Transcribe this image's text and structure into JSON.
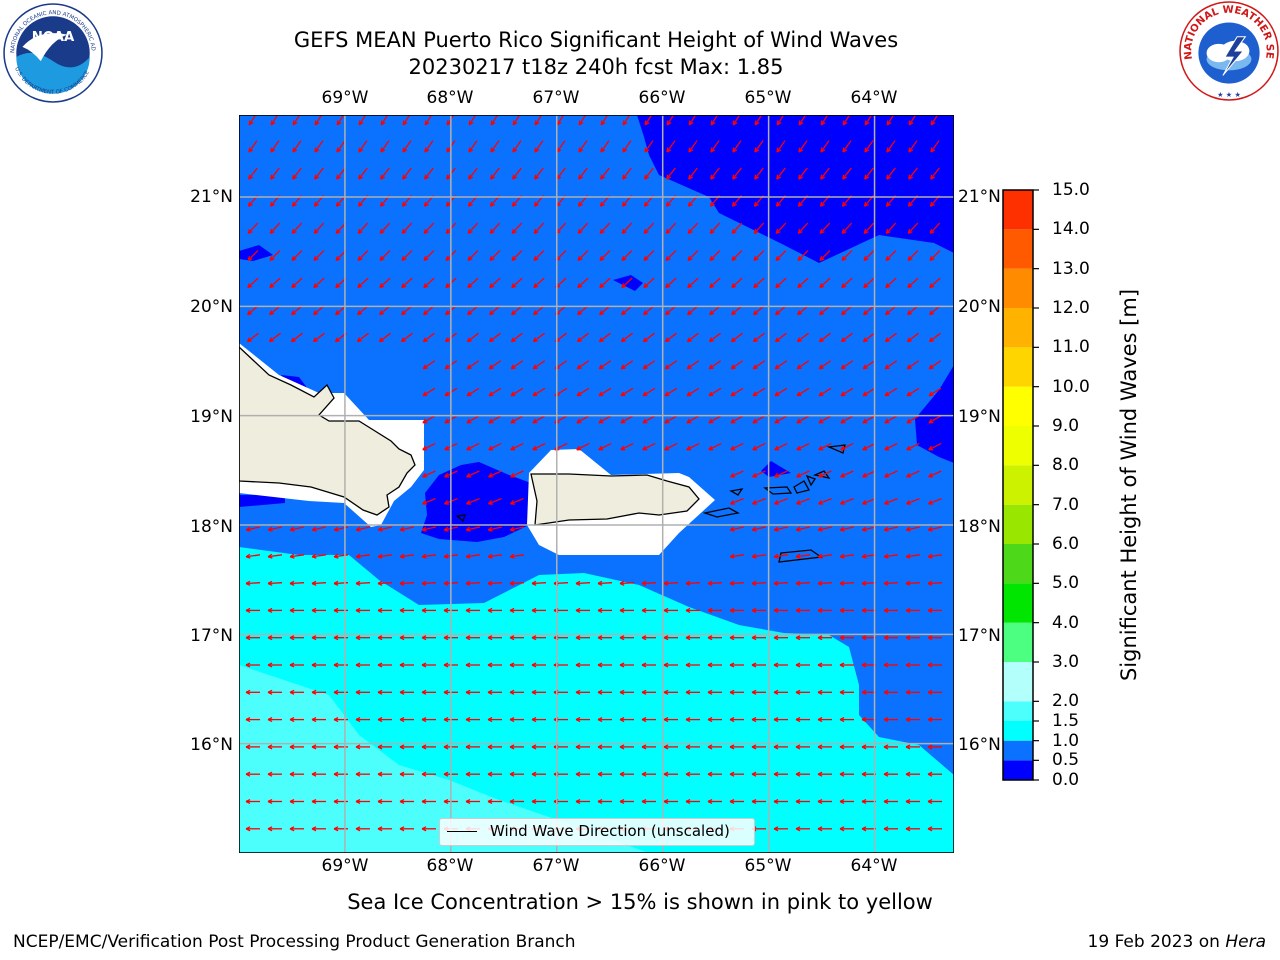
{
  "title": {
    "line1": "GEFS MEAN Puerto Rico Significant Height of Wind Waves",
    "line2": "20230217 t18z 240h fcst   Max: 1.85"
  },
  "logos": {
    "left": {
      "name": "NOAA",
      "ring_text": "NATIONAL OCEANIC AND ATMOSPHERIC ADMINISTRATION",
      "bottom_text": "U.S. DEPARTMENT OF COMMERCE",
      "icon": "noaa-logo"
    },
    "right": {
      "ring_text": "NATIONAL WEATHER SERVICE",
      "icon": "nws-logo"
    }
  },
  "map": {
    "lon_ticks": [
      "69°W",
      "68°W",
      "67°W",
      "66°W",
      "65°W",
      "64°W"
    ],
    "lat_ticks": [
      "21°N",
      "20°N",
      "19°N",
      "18°N",
      "17°N",
      "16°N"
    ],
    "lon_range": [
      -70.0,
      -63.25
    ],
    "lat_range": [
      15.0,
      21.75
    ],
    "grid": true,
    "arrow_color": "#ff0000",
    "land_color": "#efedde",
    "coast_color": "#000000",
    "wind_wave_direction": "westward"
  },
  "legend": {
    "label": "Wind Wave Direction (unscaled)",
    "placement": "bottom-center"
  },
  "colorbar": {
    "label": "Significant Height of Wind Waves [m]",
    "ticks": [
      "0.0",
      "0.5",
      "1.0",
      "1.5",
      "2.0",
      "3.0",
      "4.0",
      "5.0",
      "6.0",
      "7.0",
      "8.0",
      "9.0",
      "10.0",
      "11.0",
      "12.0",
      "13.0",
      "14.0",
      "15.0"
    ],
    "colors": [
      "#0000ff",
      "#0a72ff",
      "#00ffff",
      "#4dfffc",
      "#b3fffc",
      "#4dff80",
      "#00e600",
      "#4dd91a",
      "#99e600",
      "#ccf200",
      "#eeff00",
      "#ffff00",
      "#ffd500",
      "#ffb300",
      "#ff8c00",
      "#ff5a00",
      "#ff3000",
      "#ff0000"
    ]
  },
  "note": "Sea Ice Concentration > 15% is shown in pink to yellow",
  "footer": {
    "left": "NCEP/EMC/Verification Post Processing Product Generation Branch",
    "right_prefix": "19 Feb 2023 on ",
    "right_machine": "Hera"
  }
}
